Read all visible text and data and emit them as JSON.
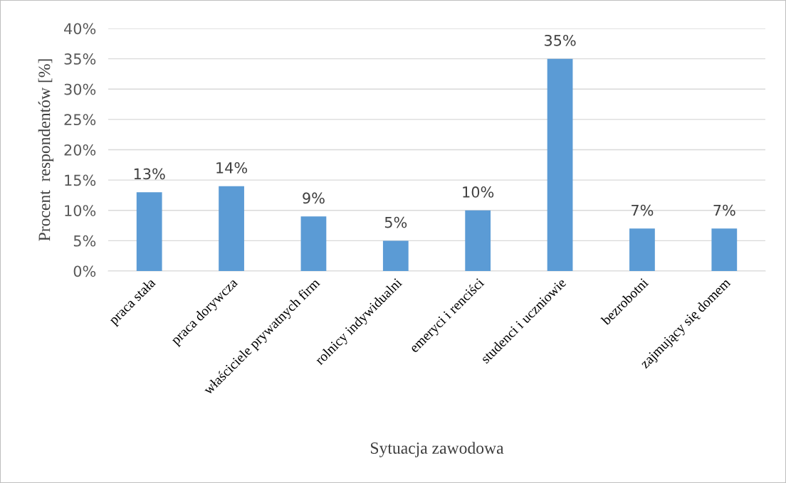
{
  "chart_data": {
    "type": "bar",
    "xlabel": "Sytuacja zawodowa",
    "ylabel": "Procent  respondentów [%]",
    "categories": [
      "praca stała",
      "praca dorywcza",
      "właściciele prywatnych firm",
      "rolnicy indywidualni",
      "emeryci i renciści",
      "studenci i uczniowie",
      "bezrobotni",
      "zajmujący się domem"
    ],
    "values": [
      13,
      14,
      9,
      5,
      10,
      35,
      7,
      7
    ],
    "value_labels": [
      "13%",
      "14%",
      "9%",
      "5%",
      "10%",
      "35%",
      "7%",
      "7%"
    ],
    "color": "#5b9bd5",
    "ylim": [
      0,
      40
    ],
    "yticks": [
      {
        "value": 0,
        "label": "0%"
      },
      {
        "value": 5,
        "label": "5%"
      },
      {
        "value": 10,
        "label": "10%"
      },
      {
        "value": 15,
        "label": "15%"
      },
      {
        "value": 20,
        "label": "20%"
      },
      {
        "value": 25,
        "label": "25%"
      },
      {
        "value": 30,
        "label": "30%"
      },
      {
        "value": 35,
        "label": "35%"
      },
      {
        "value": 40,
        "label": "40%"
      }
    ],
    "grid": "y",
    "legend": false
  }
}
